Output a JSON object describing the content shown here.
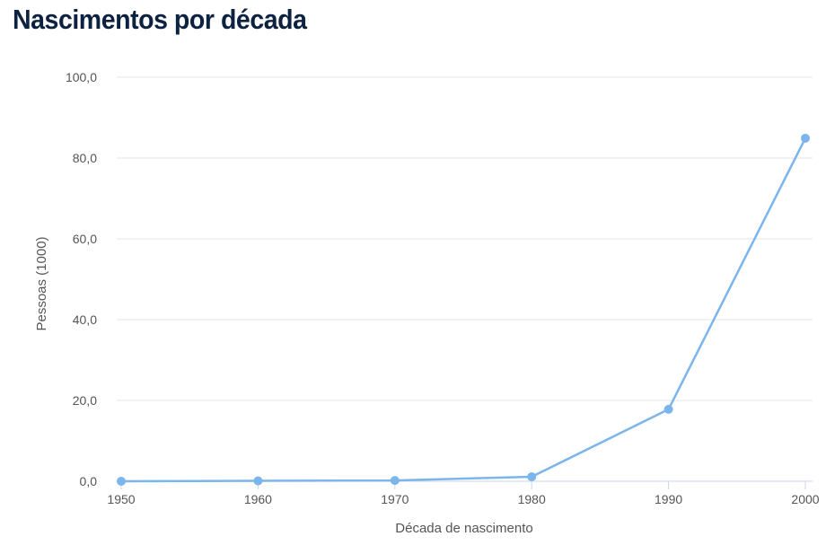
{
  "chart_data": {
    "type": "line",
    "title": "Nascimentos por década",
    "xlabel": "Década de nascimento",
    "ylabel": "Pessoas (1000)",
    "categories": [
      "1950",
      "1960",
      "1970",
      "1980",
      "1990",
      "2000"
    ],
    "series": [
      {
        "values": [
          0.0,
          0.1,
          0.2,
          1.1,
          17.8,
          84.9
        ]
      }
    ],
    "ylim": [
      0,
      100
    ],
    "yticks": [
      "0,0",
      "20,0",
      "40,0",
      "60,0",
      "80,0",
      "100,0"
    ],
    "grid": true,
    "color": "#7cb5ec"
  }
}
